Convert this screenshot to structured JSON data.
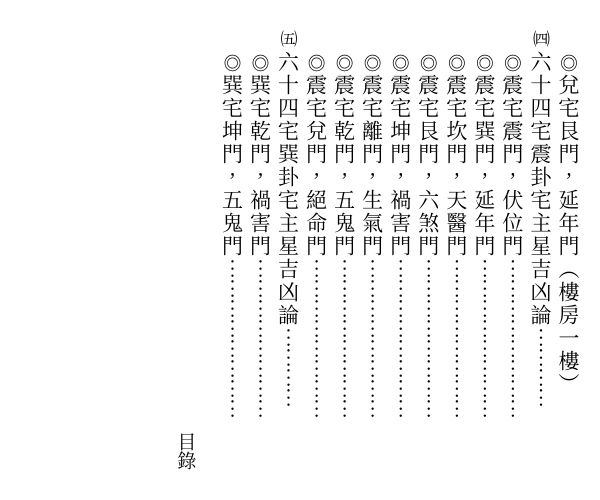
{
  "entries": [
    {
      "sectionNum": "",
      "marker": "◎",
      "text": "兌宅艮門，延年門（樓房一樓）",
      "dots": ""
    },
    {
      "sectionNum": "㈣",
      "marker": "",
      "text": "六十四宅震卦宅主星吉凶論",
      "dots": "⋯⋯⋯⋯"
    },
    {
      "sectionNum": "",
      "marker": "◎",
      "text": "震宅震門，伏位門",
      "dots": "⋯⋯⋯⋯⋯⋯⋯⋯"
    },
    {
      "sectionNum": "",
      "marker": "◎",
      "text": "震宅巽門，延年門",
      "dots": "⋯⋯⋯⋯⋯⋯⋯⋯"
    },
    {
      "sectionNum": "",
      "marker": "◎",
      "text": "震宅坎門，天醫門",
      "dots": "⋯⋯⋯⋯⋯⋯⋯⋯"
    },
    {
      "sectionNum": "",
      "marker": "◎",
      "text": "震宅艮門，六煞門",
      "dots": "⋯⋯⋯⋯⋯⋯⋯⋯"
    },
    {
      "sectionNum": "",
      "marker": "◎",
      "text": "震宅坤門，禍害門",
      "dots": "⋯⋯⋯⋯⋯⋯⋯⋯"
    },
    {
      "sectionNum": "",
      "marker": "◎",
      "text": "震宅離門，生氣門",
      "dots": "⋯⋯⋯⋯⋯⋯⋯⋯"
    },
    {
      "sectionNum": "",
      "marker": "◎",
      "text": "震宅乾門，五鬼門",
      "dots": "⋯⋯⋯⋯⋯⋯⋯⋯"
    },
    {
      "sectionNum": "",
      "marker": "◎",
      "text": "震宅兌門，絕命門",
      "dots": "⋯⋯⋯⋯⋯⋯⋯⋯"
    },
    {
      "sectionNum": "㈤",
      "marker": "",
      "text": "六十四宅巽卦宅主星吉凶論",
      "dots": "⋯⋯⋯⋯"
    },
    {
      "sectionNum": "",
      "marker": "◎",
      "text": "巽宅乾門，禍害門",
      "dots": "⋯⋯⋯⋯⋯⋯⋯⋯"
    },
    {
      "sectionNum": "",
      "marker": "◎",
      "text": "巽宅坤門，五鬼門",
      "dots": "⋯⋯⋯⋯⋯⋯⋯⋯"
    }
  ],
  "footer": "目錄"
}
